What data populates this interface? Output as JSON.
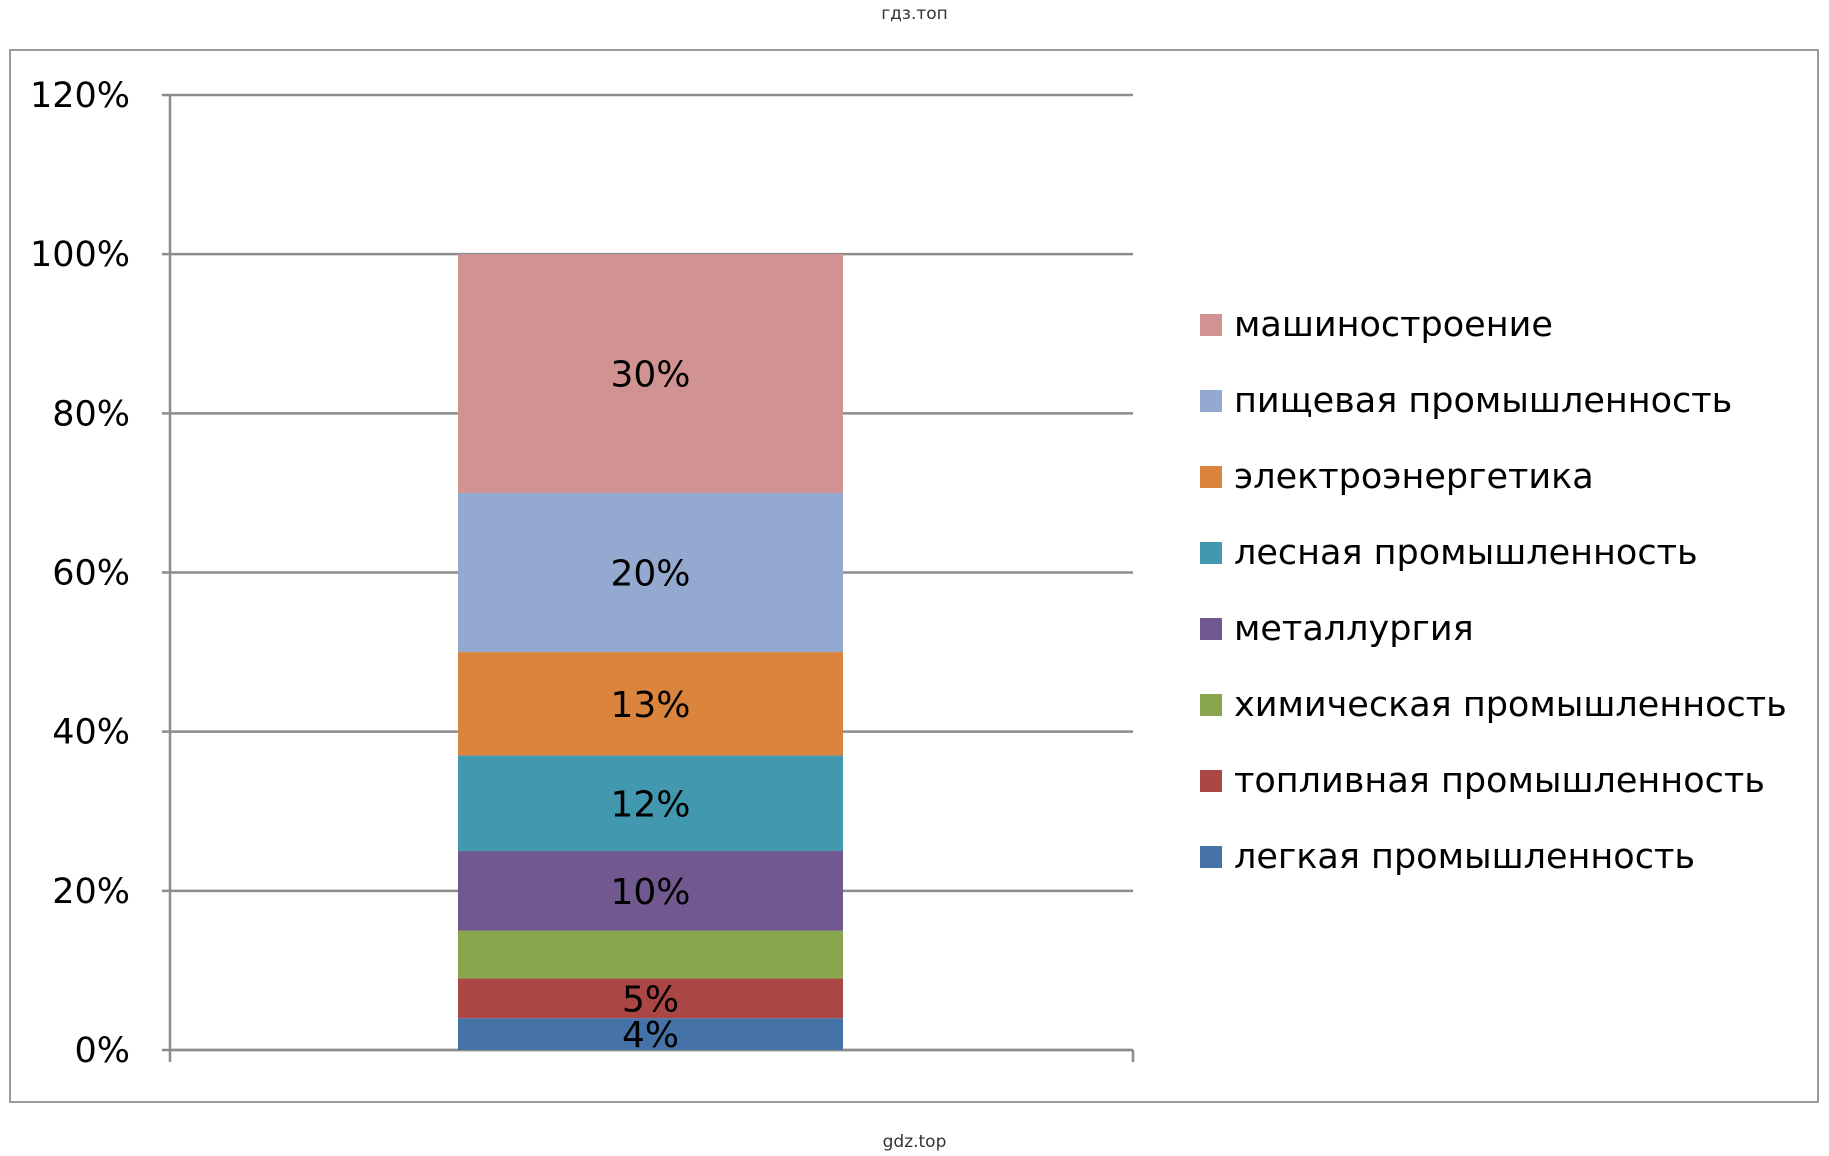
{
  "watermark_top": "гдз.топ",
  "watermark_bottom": "gdz.top",
  "chart_data": {
    "type": "bar",
    "stacked": true,
    "categories": [
      ""
    ],
    "ylim": [
      0,
      120
    ],
    "y_ticks": [
      "0%",
      "20%",
      "40%",
      "60%",
      "80%",
      "100%",
      "120%"
    ],
    "grid": true,
    "legend_position": "right",
    "series": [
      {
        "name": "легкая промышленность",
        "values": [
          4
        ],
        "label": "4%",
        "color": "#4572a7"
      },
      {
        "name": "топливная промышленность",
        "values": [
          5
        ],
        "label": "5%",
        "color": "#aa4643"
      },
      {
        "name": "химическая промышленность",
        "values": [
          6
        ],
        "label": "",
        "color": "#89a54e"
      },
      {
        "name": "металлургия",
        "values": [
          10
        ],
        "label": "10%",
        "color": "#71588f"
      },
      {
        "name": "лесная промышленность",
        "values": [
          12
        ],
        "label": "12%",
        "color": "#4198af"
      },
      {
        "name": "электроэнергетика",
        "values": [
          13
        ],
        "label": "13%",
        "color": "#db843d"
      },
      {
        "name": "пищевая промышленность",
        "values": [
          20
        ],
        "label": "20%",
        "color": "#93a9cf"
      },
      {
        "name": "машиностроение",
        "values": [
          30
        ],
        "label": "30%",
        "color": "#d19392"
      }
    ]
  }
}
